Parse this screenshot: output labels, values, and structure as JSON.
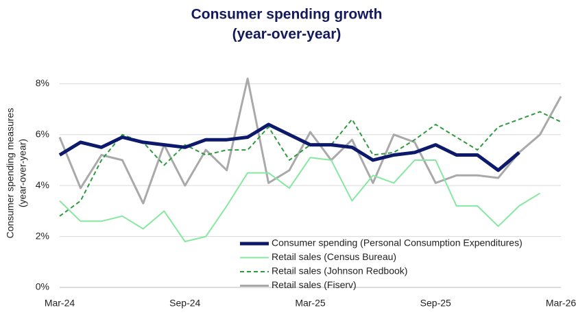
{
  "chart_data": {
    "type": "line",
    "title": [
      "Consumer spending growth",
      "(year-over-year)"
    ],
    "y_label": [
      "Consumer spending measures",
      "(year-over-year)"
    ],
    "categories": [
      "Mar-24",
      null,
      null,
      null,
      null,
      null,
      "Sep-24",
      null,
      null,
      null,
      null,
      null,
      "Mar-25",
      null,
      null,
      null,
      null,
      null,
      "Sep-25",
      null,
      null,
      null,
      null,
      null,
      "Mar-26"
    ],
    "ylim": [
      0,
      8.6
    ],
    "yticks": [
      {
        "value": 0,
        "label": "0%"
      },
      {
        "value": 2,
        "label": "2%"
      },
      {
        "value": 4,
        "label": "4%"
      },
      {
        "value": 6,
        "label": "6%"
      },
      {
        "value": 8,
        "label": "8%"
      }
    ],
    "grid": true,
    "legend": "bottom-right",
    "series": [
      {
        "name": "Consumer spending (Personal Consumption Expenditures)",
        "color": "#0d1a6b",
        "style": "solid",
        "width": 5,
        "values": [
          5.2,
          5.7,
          5.5,
          5.9,
          5.7,
          5.6,
          5.5,
          5.8,
          5.8,
          5.9,
          6.4,
          6.0,
          5.6,
          5.6,
          5.5,
          5.0,
          5.2,
          5.3,
          5.6,
          5.2,
          5.2,
          4.6,
          5.3,
          null,
          null
        ]
      },
      {
        "name": "Retail sales (Census Bureau)",
        "color": "#86e8a0",
        "style": "solid",
        "width": 2,
        "values": [
          3.4,
          2.6,
          2.6,
          2.8,
          2.3,
          3.0,
          1.8,
          2.0,
          3.2,
          4.5,
          4.5,
          3.9,
          5.1,
          5.0,
          3.4,
          4.4,
          4.1,
          5.0,
          5.0,
          3.2,
          3.2,
          2.4,
          3.2,
          3.7,
          null
        ]
      },
      {
        "name": "Retail sales (Johnson Redbook)",
        "color": "#2e9a3e",
        "style": "dashed",
        "width": 2,
        "values": [
          2.8,
          3.4,
          5.0,
          6.0,
          5.7,
          4.8,
          5.6,
          5.2,
          5.4,
          5.4,
          6.3,
          5.0,
          5.6,
          5.6,
          6.6,
          5.2,
          5.3,
          5.8,
          6.4,
          5.9,
          5.4,
          6.3,
          6.6,
          6.9,
          6.5
        ]
      },
      {
        "name": "Retail sales (Fiserv)",
        "color": "#a9a9a9",
        "style": "solid",
        "width": 3,
        "values": [
          5.9,
          3.9,
          5.2,
          5.0,
          3.3,
          5.6,
          4.0,
          5.4,
          4.6,
          8.2,
          4.1,
          4.6,
          6.1,
          5.0,
          5.8,
          4.1,
          6.0,
          5.7,
          4.1,
          4.4,
          4.4,
          4.3,
          5.3,
          6.0,
          7.5
        ]
      }
    ]
  }
}
